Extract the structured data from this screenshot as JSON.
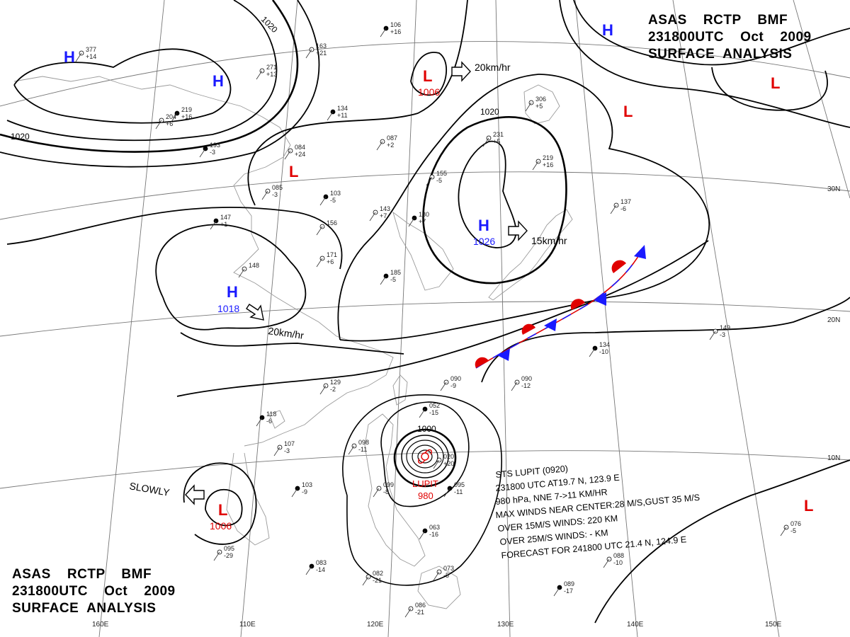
{
  "header": {
    "top_right": [
      "ASAS    RCTP    BMF",
      "231800UTC    Oct    2009",
      "SURFACE  ANALYSIS"
    ],
    "bottom_left": [
      "ASAS    RCTP    BMF",
      "231800UTC    Oct    2009",
      "SURFACE  ANALYSIS"
    ]
  },
  "graticule": {
    "lon_labels": [
      "110E",
      "120E",
      "130E",
      "140E",
      "150E",
      "160E"
    ],
    "lat_labels": [
      "30N",
      "20N",
      "10N"
    ]
  },
  "pressure_centers": [
    {
      "type": "H",
      "value": ""
    },
    {
      "type": "H",
      "value": ""
    },
    {
      "type": "H",
      "value": ""
    },
    {
      "type": "H",
      "value": "1026"
    },
    {
      "type": "H",
      "value": "1018"
    },
    {
      "type": "L",
      "value": "1006"
    },
    {
      "type": "L",
      "value": ""
    },
    {
      "type": "L",
      "value": ""
    },
    {
      "type": "L",
      "value": ""
    },
    {
      "type": "L",
      "value": "1006"
    },
    {
      "type": "L",
      "value": ""
    }
  ],
  "colors": {
    "high": "#1a1aff",
    "low": "#e00000",
    "isobar": "#000000",
    "grid": "#777777",
    "coast": "#999999",
    "front_warm": "#e00000",
    "front_cold": "#1a1aff"
  },
  "isobar_labels": [
    "1020",
    "1020",
    "1020",
    "1000"
  ],
  "motion_labels": [
    "20km/hr",
    "15km/hr",
    "20km/hr",
    "SLOWLY"
  ],
  "typhoon": {
    "symbol": "typhoon-symbol",
    "name": "LUPIT",
    "pressure": "980",
    "info_lines": [
      "STS  LUPIT  (0920)",
      "231800 UTC  AT19.7 N, 123.9 E",
      "980 hPa, NNE  7->11 KM/HR",
      "MAX WINDS NEAR CENTER:28 M/S,GUST 35 M/S",
      "OVER 15M/S WINDS: 220 KM",
      "OVER 25M/S WINDS: - KM",
      "FORECAST FOR 241800 UTC 21.4 N, 124.9 E"
    ]
  },
  "stations": [
    {
      "top": "106",
      "bot": "+16"
    },
    {
      "top": "163",
      "bot": "+21"
    },
    {
      "top": "271",
      "bot": "+13"
    },
    {
      "top": "134",
      "bot": "+11"
    },
    {
      "top": "084",
      "bot": "+24"
    },
    {
      "top": "085",
      "bot": "-3"
    },
    {
      "top": "103",
      "bot": "-5"
    },
    {
      "top": "143",
      "bot": "+7"
    },
    {
      "top": "155",
      "bot": "-5"
    },
    {
      "top": "180",
      "bot": "+7"
    },
    {
      "top": "231",
      "bot": "+5"
    },
    {
      "top": "219",
      "bot": "+16"
    },
    {
      "top": "147",
      "bot": "+1"
    },
    {
      "top": "171",
      "bot": "+6"
    },
    {
      "top": "156",
      "bot": ""
    },
    {
      "top": "185",
      "bot": "-5"
    },
    {
      "top": "148",
      "bot": ""
    },
    {
      "top": "129",
      "bot": "-2"
    },
    {
      "top": "118",
      "bot": "-6"
    },
    {
      "top": "107",
      "bot": "-3"
    },
    {
      "top": "098",
      "bot": "-11"
    },
    {
      "top": "052",
      "bot": "-15"
    },
    {
      "top": "090",
      "bot": "-9"
    },
    {
      "top": "020",
      "bot": "+20"
    },
    {
      "top": "103",
      "bot": "-9"
    },
    {
      "top": "099",
      "bot": "-8"
    },
    {
      "top": "095",
      "bot": "-29"
    },
    {
      "top": "083",
      "bot": "-14"
    },
    {
      "top": "082",
      "bot": "-21"
    },
    {
      "top": "073",
      "bot": "-5"
    },
    {
      "top": "063",
      "bot": "-16"
    },
    {
      "top": "086",
      "bot": "-21"
    },
    {
      "top": "088",
      "bot": "-10"
    },
    {
      "top": "089",
      "bot": "-17"
    },
    {
      "top": "076",
      "bot": "-5"
    },
    {
      "top": "090",
      "bot": "-12"
    },
    {
      "top": "134",
      "bot": "-10"
    },
    {
      "top": "149",
      "bot": "-3"
    },
    {
      "top": "137",
      "bot": "-6"
    },
    {
      "top": "219",
      "bot": "+16"
    },
    {
      "top": "306",
      "bot": "+5"
    },
    {
      "top": "204",
      "bot": "+6"
    },
    {
      "top": "193",
      "bot": "-3"
    },
    {
      "top": "377",
      "bot": "+14"
    },
    {
      "top": "087",
      "bot": "+2"
    },
    {
      "top": "095",
      "bot": "-11"
    }
  ]
}
